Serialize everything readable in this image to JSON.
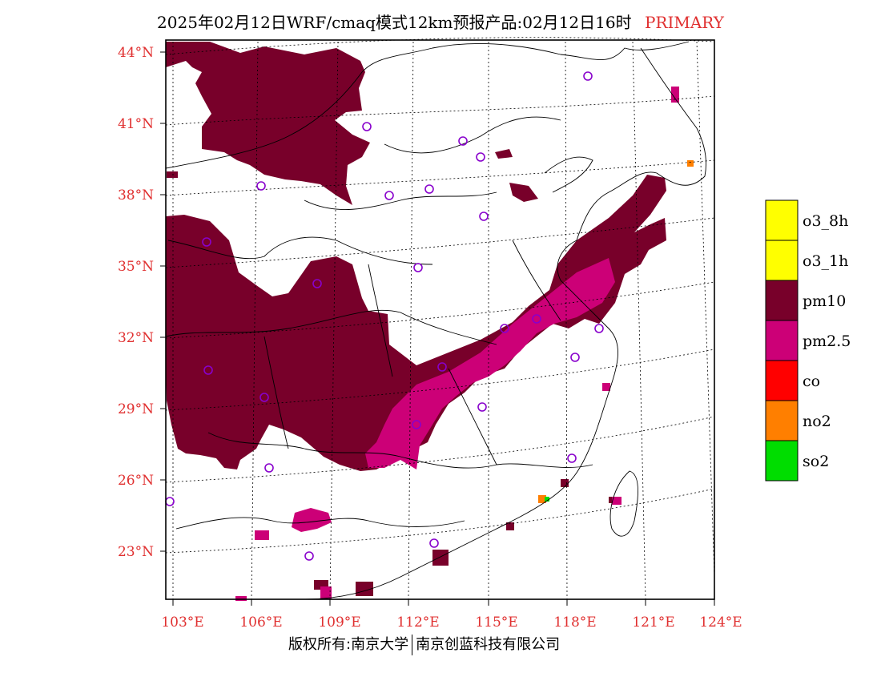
{
  "title": {
    "main": "2025年02月12日WRF/cmaq模式12km预报产品:02月12日16时",
    "tag": "PRIMARY"
  },
  "lat_labels": [
    "44°N",
    "41°N",
    "38°N",
    "35°N",
    "32°N",
    "29°N",
    "26°N",
    "23°N"
  ],
  "lon_labels": [
    "103°E",
    "106°E",
    "109°E",
    "112°E",
    "115°E",
    "118°E",
    "121°E",
    "124°E"
  ],
  "legend": [
    {
      "label": "o3_8h",
      "color": "#ffff00"
    },
    {
      "label": "o3_1h",
      "color": "#ffff00"
    },
    {
      "label": "pm10",
      "color": "#78002a"
    },
    {
      "label": "pm2.5",
      "color": "#cc0077"
    },
    {
      "label": "co",
      "color": "#ff0000"
    },
    {
      "label": "no2",
      "color": "#ff7f00"
    },
    {
      "label": "so2",
      "color": "#00dd00"
    }
  ],
  "colors": {
    "pm10": "#78002a",
    "pm25": "#cc0077",
    "site": "#8800cc"
  },
  "footer": {
    "left": "版权所有:南京大学",
    "right": "南京创蓝科技有限公司"
  }
}
